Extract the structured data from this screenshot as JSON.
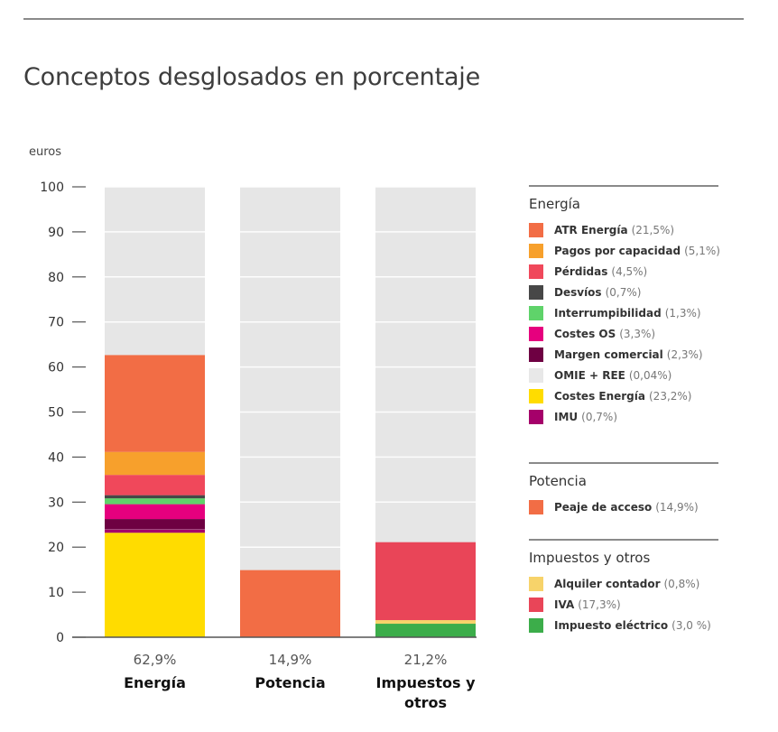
{
  "page": {
    "title": "Conceptos desglosados en porcentaje"
  },
  "chart_data": {
    "type": "bar",
    "stacked": true,
    "ylabel": "euros",
    "ylim": [
      0,
      100
    ],
    "yticks": [
      0,
      10,
      20,
      30,
      40,
      50,
      60,
      70,
      80,
      90,
      100
    ],
    "grid": true,
    "background_color": "#e6e6e6",
    "categories": [
      {
        "name": "Energía",
        "total_label": "62,9%"
      },
      {
        "name": "Potencia",
        "total_label": "14,9%"
      },
      {
        "name": "Impuestos y otros",
        "total_label": "21,2%"
      }
    ],
    "segments": [
      [
        {
          "value": 23.2,
          "color": "#ffdc00"
        },
        {
          "value": 0.7,
          "color": "#a5006a"
        },
        {
          "value": 0.04,
          "color": "#e8e8e8"
        },
        {
          "value": 2.3,
          "color": "#6e0042"
        },
        {
          "value": 3.3,
          "color": "#e6007e"
        },
        {
          "value": 1.3,
          "color": "#5fd36a"
        },
        {
          "value": 0.7,
          "color": "#474747"
        },
        {
          "value": 4.5,
          "color": "#f0485b"
        },
        {
          "value": 5.1,
          "color": "#f7a02c"
        },
        {
          "value": 21.5,
          "color": "#f26d45"
        }
      ],
      [
        {
          "value": 14.9,
          "color": "#f26d45"
        }
      ],
      [
        {
          "value": 3.0,
          "color": "#3cad4a"
        },
        {
          "value": 0.8,
          "color": "#f7d36a"
        },
        {
          "value": 17.3,
          "color": "#e94558"
        }
      ]
    ]
  },
  "legend": {
    "groups": [
      {
        "heading": "Energía",
        "items": [
          {
            "label": "ATR Energía",
            "value": "(21,5%)",
            "color": "#f26d45"
          },
          {
            "label": "Pagos por capacidad",
            "value": "(5,1%)",
            "color": "#f7a02c"
          },
          {
            "label": "Pérdidas",
            "value": "(4,5%)",
            "color": "#f0485b"
          },
          {
            "label": "Desvíos",
            "value": "(0,7%)",
            "color": "#474747"
          },
          {
            "label": "Interrumpibilidad",
            "value": "(1,3%)",
            "color": "#5fd36a"
          },
          {
            "label": "Costes OS",
            "value": "(3,3%)",
            "color": "#e6007e"
          },
          {
            "label": "Margen comercial",
            "value": "(2,3%)",
            "color": "#6e0042"
          },
          {
            "label": "OMIE + REE",
            "value": "(0,04%)",
            "color": "#e8e8e8"
          },
          {
            "label": "Costes Energía",
            "value": "(23,2%)",
            "color": "#ffdc00"
          },
          {
            "label": "IMU",
            "value": "(0,7%)",
            "color": "#a5006a"
          }
        ]
      },
      {
        "heading": "Potencia",
        "items": [
          {
            "label": "Peaje de acceso",
            "value": "(14,9%)",
            "color": "#f26d45"
          }
        ]
      },
      {
        "heading": "Impuestos y otros",
        "items": [
          {
            "label": "Alquiler contador",
            "value": "(0,8%)",
            "color": "#f7d36a"
          },
          {
            "label": "IVA",
            "value": "(17,3%)",
            "color": "#e94558"
          },
          {
            "label": "Impuesto eléctrico",
            "value": "(3,0 %)",
            "color": "#3cad4a"
          }
        ]
      }
    ]
  }
}
